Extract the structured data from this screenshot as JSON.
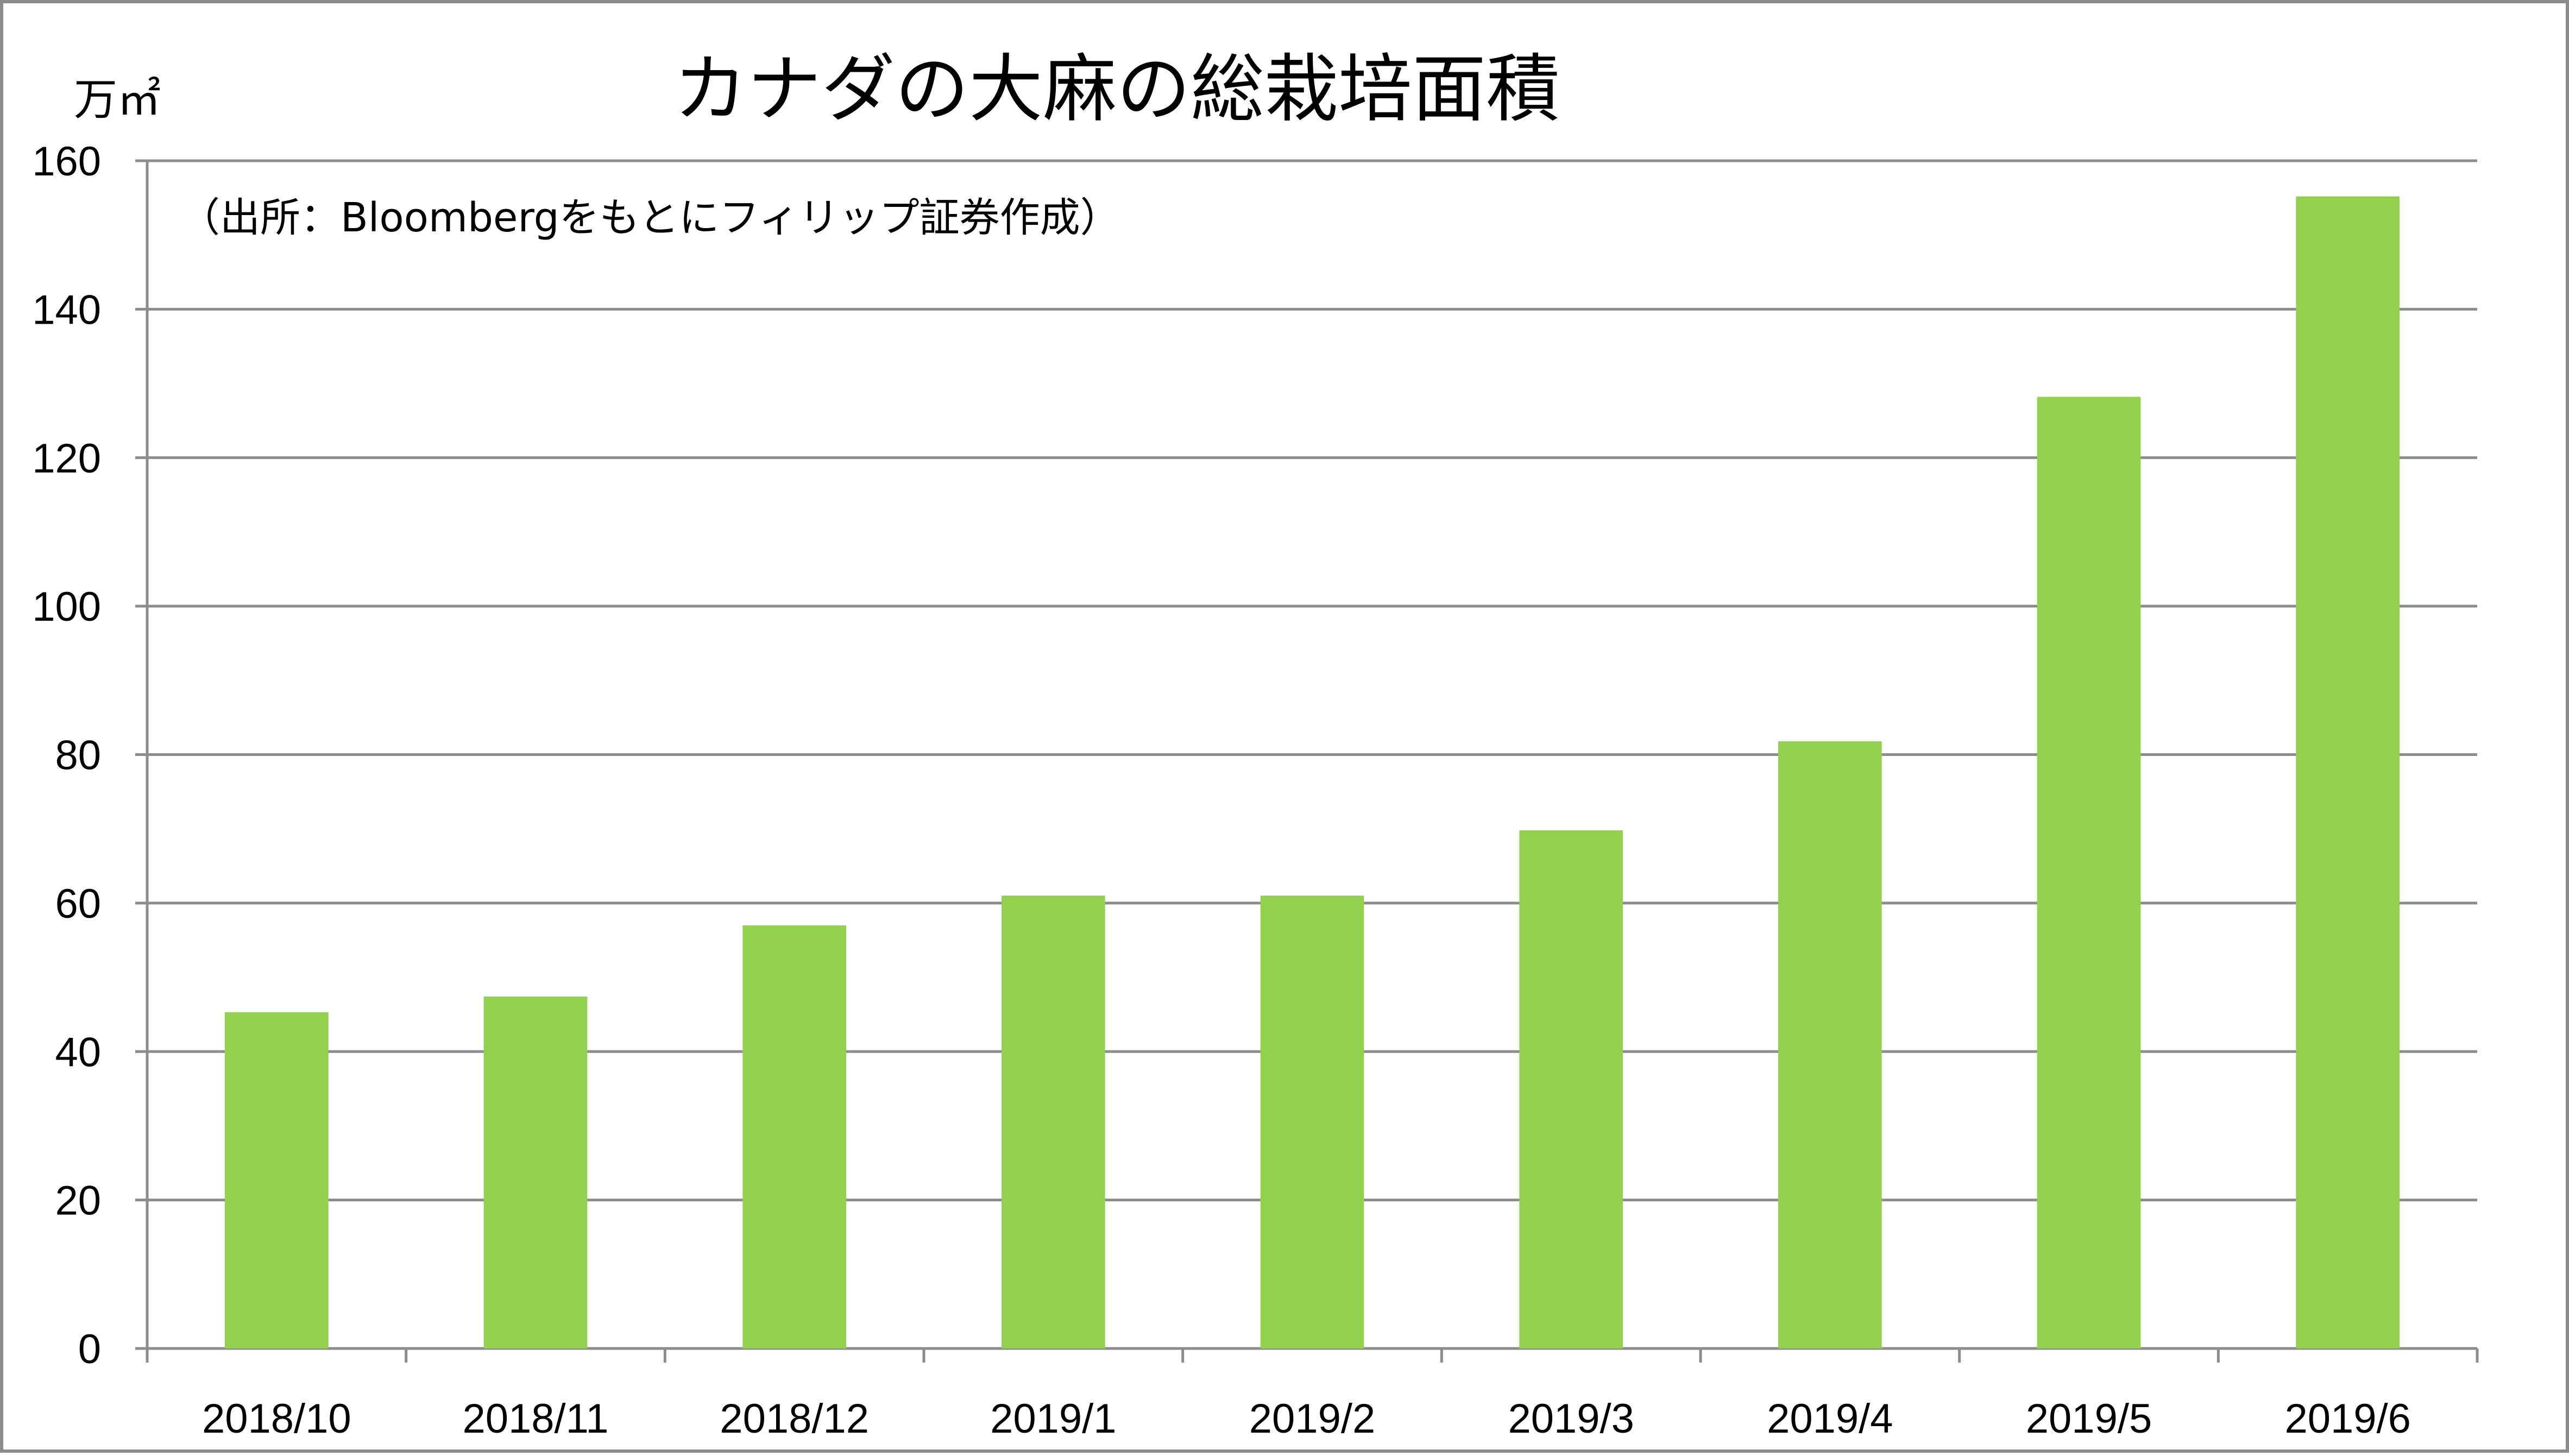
{
  "chart_data": {
    "type": "bar",
    "title": "カナダの大麻の総栽培面積",
    "ylabel": "万㎡",
    "source_note": "（出所：Bloombergをもとにフィリップ証券作成）",
    "categories": [
      "2018/10",
      "2018/11",
      "2018/12",
      "2019/1",
      "2019/2",
      "2019/3",
      "2019/4",
      "2019/5",
      "2019/6"
    ],
    "values": [
      45.3,
      47.4,
      57.0,
      61.0,
      61.0,
      69.8,
      81.8,
      128.2,
      155.2
    ],
    "ylim": [
      0,
      160
    ],
    "yticks": [
      0,
      20,
      40,
      60,
      80,
      100,
      120,
      140,
      160
    ],
    "grid": true,
    "bar_color": "#92d050",
    "grid_color": "#8c8c8c"
  }
}
